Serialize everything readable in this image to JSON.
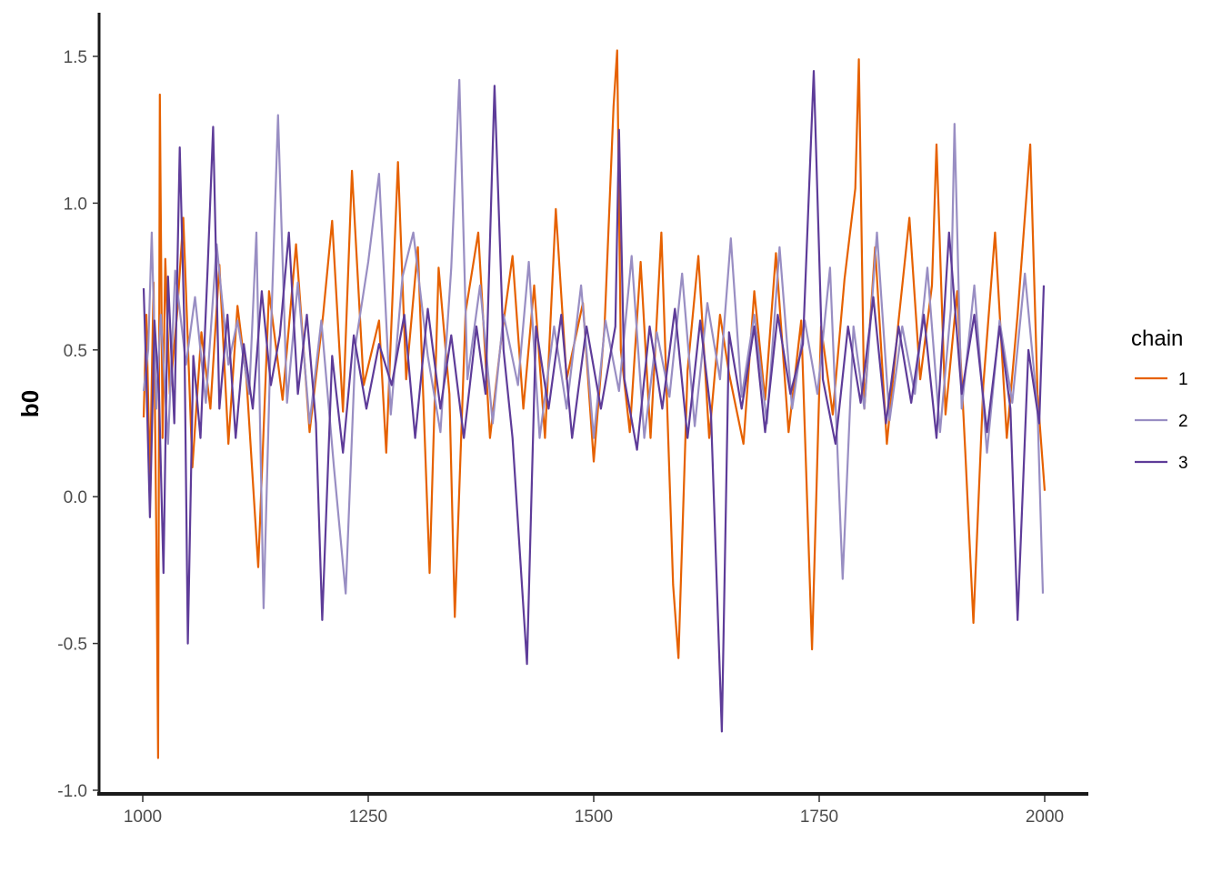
{
  "chart_data": {
    "type": "line",
    "title": "",
    "xlabel": "",
    "ylabel": "b0",
    "xlim": [
      1000,
      2000
    ],
    "ylim": [
      -1.0,
      1.5
    ],
    "x_ticks": [
      1000,
      1250,
      1500,
      1750,
      2000
    ],
    "y_ticks": [
      -1.0,
      -0.5,
      0.0,
      0.5,
      1.0,
      1.5
    ],
    "x_tick_labels": [
      "1000",
      "1250",
      "1500",
      "1750",
      "2000"
    ],
    "y_tick_labels": [
      "-1.0",
      "-0.5",
      "0.0",
      "0.5",
      "1.0",
      "1.5"
    ],
    "grid": false,
    "legend": {
      "title": "chain",
      "position": "right"
    },
    "series": [
      {
        "name": "1",
        "color": "#E66100",
        "points": [
          [
            1001,
            0.27
          ],
          [
            1004,
            0.62
          ],
          [
            1008,
            0.05
          ],
          [
            1012,
            0.73
          ],
          [
            1015,
            -0.12
          ],
          [
            1017,
            -0.89
          ],
          [
            1019,
            1.37
          ],
          [
            1022,
            0.2
          ],
          [
            1025,
            0.81
          ],
          [
            1030,
            0.35
          ],
          [
            1038,
            0.62
          ],
          [
            1045,
            0.95
          ],
          [
            1055,
            0.1
          ],
          [
            1065,
            0.56
          ],
          [
            1075,
            0.3
          ],
          [
            1085,
            0.79
          ],
          [
            1095,
            0.18
          ],
          [
            1105,
            0.65
          ],
          [
            1115,
            0.4
          ],
          [
            1128,
            -0.24
          ],
          [
            1140,
            0.7
          ],
          [
            1155,
            0.33
          ],
          [
            1170,
            0.86
          ],
          [
            1185,
            0.22
          ],
          [
            1200,
            0.62
          ],
          [
            1210,
            0.94
          ],
          [
            1222,
            0.29
          ],
          [
            1232,
            1.11
          ],
          [
            1245,
            0.38
          ],
          [
            1262,
            0.6
          ],
          [
            1270,
            0.15
          ],
          [
            1283,
            1.14
          ],
          [
            1292,
            0.4
          ],
          [
            1305,
            0.85
          ],
          [
            1318,
            -0.26
          ],
          [
            1328,
            0.78
          ],
          [
            1340,
            0.35
          ],
          [
            1346,
            -0.41
          ],
          [
            1358,
            0.63
          ],
          [
            1372,
            0.9
          ],
          [
            1385,
            0.2
          ],
          [
            1398,
            0.55
          ],
          [
            1410,
            0.82
          ],
          [
            1422,
            0.3
          ],
          [
            1434,
            0.72
          ],
          [
            1446,
            0.2
          ],
          [
            1458,
            0.98
          ],
          [
            1470,
            0.4
          ],
          [
            1488,
            0.66
          ],
          [
            1500,
            0.12
          ],
          [
            1512,
            0.58
          ],
          [
            1522,
            1.33
          ],
          [
            1526,
            1.52
          ],
          [
            1530,
            0.5
          ],
          [
            1540,
            0.22
          ],
          [
            1552,
            0.8
          ],
          [
            1563,
            0.2
          ],
          [
            1575,
            0.9
          ],
          [
            1588,
            -0.3
          ],
          [
            1594,
            -0.55
          ],
          [
            1604,
            0.43
          ],
          [
            1616,
            0.82
          ],
          [
            1628,
            0.2
          ],
          [
            1640,
            0.62
          ],
          [
            1650,
            0.42
          ],
          [
            1666,
            0.18
          ],
          [
            1678,
            0.7
          ],
          [
            1690,
            0.33
          ],
          [
            1702,
            0.83
          ],
          [
            1716,
            0.22
          ],
          [
            1730,
            0.6
          ],
          [
            1742,
            -0.52
          ],
          [
            1752,
            0.58
          ],
          [
            1765,
            0.28
          ],
          [
            1778,
            0.74
          ],
          [
            1790,
            1.05
          ],
          [
            1794,
            1.49
          ],
          [
            1800,
            0.3
          ],
          [
            1812,
            0.85
          ],
          [
            1825,
            0.18
          ],
          [
            1838,
            0.6
          ],
          [
            1850,
            0.95
          ],
          [
            1862,
            0.4
          ],
          [
            1875,
            0.72
          ],
          [
            1880,
            1.2
          ],
          [
            1890,
            0.28
          ],
          [
            1903,
            0.7
          ],
          [
            1912,
            0.15
          ],
          [
            1921,
            -0.43
          ],
          [
            1932,
            0.38
          ],
          [
            1945,
            0.9
          ],
          [
            1958,
            0.2
          ],
          [
            1970,
            0.62
          ],
          [
            1984,
            1.2
          ],
          [
            1992,
            0.35
          ],
          [
            2000,
            0.02
          ]
        ]
      },
      {
        "name": "2",
        "color": "#998EC3",
        "points": [
          [
            1001,
            0.36
          ],
          [
            1006,
            0.5
          ],
          [
            1010,
            0.9
          ],
          [
            1015,
            0.3
          ],
          [
            1020,
            0.62
          ],
          [
            1028,
            0.18
          ],
          [
            1036,
            0.77
          ],
          [
            1048,
            0.45
          ],
          [
            1058,
            0.68
          ],
          [
            1070,
            0.32
          ],
          [
            1082,
            0.86
          ],
          [
            1095,
            0.45
          ],
          [
            1105,
            0.6
          ],
          [
            1118,
            0.35
          ],
          [
            1126,
            0.9
          ],
          [
            1134,
            -0.38
          ],
          [
            1142,
            0.55
          ],
          [
            1150,
            1.3
          ],
          [
            1160,
            0.32
          ],
          [
            1172,
            0.73
          ],
          [
            1185,
            0.25
          ],
          [
            1198,
            0.6
          ],
          [
            1212,
            0.1
          ],
          [
            1225,
            -0.33
          ],
          [
            1236,
            0.52
          ],
          [
            1250,
            0.8
          ],
          [
            1262,
            1.1
          ],
          [
            1275,
            0.28
          ],
          [
            1288,
            0.75
          ],
          [
            1300,
            0.9
          ],
          [
            1316,
            0.48
          ],
          [
            1330,
            0.22
          ],
          [
            1342,
            0.78
          ],
          [
            1351,
            1.42
          ],
          [
            1360,
            0.4
          ],
          [
            1374,
            0.72
          ],
          [
            1388,
            0.25
          ],
          [
            1400,
            0.62
          ],
          [
            1416,
            0.38
          ],
          [
            1428,
            0.8
          ],
          [
            1440,
            0.2
          ],
          [
            1456,
            0.58
          ],
          [
            1470,
            0.3
          ],
          [
            1486,
            0.72
          ],
          [
            1500,
            0.2
          ],
          [
            1513,
            0.6
          ],
          [
            1528,
            0.36
          ],
          [
            1542,
            0.82
          ],
          [
            1556,
            0.2
          ],
          [
            1570,
            0.56
          ],
          [
            1584,
            0.34
          ],
          [
            1598,
            0.76
          ],
          [
            1612,
            0.24
          ],
          [
            1626,
            0.66
          ],
          [
            1640,
            0.4
          ],
          [
            1652,
            0.88
          ],
          [
            1664,
            0.34
          ],
          [
            1678,
            0.62
          ],
          [
            1692,
            0.25
          ],
          [
            1706,
            0.85
          ],
          [
            1720,
            0.3
          ],
          [
            1734,
            0.6
          ],
          [
            1748,
            0.35
          ],
          [
            1762,
            0.78
          ],
          [
            1776,
            -0.28
          ],
          [
            1788,
            0.58
          ],
          [
            1800,
            0.3
          ],
          [
            1814,
            0.9
          ],
          [
            1828,
            0.26
          ],
          [
            1842,
            0.58
          ],
          [
            1856,
            0.35
          ],
          [
            1870,
            0.78
          ],
          [
            1884,
            0.22
          ],
          [
            1896,
            0.64
          ],
          [
            1900,
            1.27
          ],
          [
            1908,
            0.3
          ],
          [
            1922,
            0.72
          ],
          [
            1936,
            0.15
          ],
          [
            1950,
            0.6
          ],
          [
            1964,
            0.32
          ],
          [
            1978,
            0.76
          ],
          [
            1992,
            0.3
          ],
          [
            1998,
            -0.33
          ]
        ]
      },
      {
        "name": "3",
        "color": "#5E3C99",
        "points": [
          [
            1001,
            0.71
          ],
          [
            1004,
            0.4
          ],
          [
            1008,
            -0.07
          ],
          [
            1013,
            0.6
          ],
          [
            1018,
            0.35
          ],
          [
            1023,
            -0.26
          ],
          [
            1028,
            0.75
          ],
          [
            1035,
            0.25
          ],
          [
            1041,
            1.19
          ],
          [
            1046,
            0.6
          ],
          [
            1050,
            -0.5
          ],
          [
            1056,
            0.48
          ],
          [
            1064,
            0.2
          ],
          [
            1072,
            0.78
          ],
          [
            1078,
            1.26
          ],
          [
            1085,
            0.3
          ],
          [
            1094,
            0.62
          ],
          [
            1103,
            0.2
          ],
          [
            1112,
            0.52
          ],
          [
            1122,
            0.3
          ],
          [
            1132,
            0.7
          ],
          [
            1142,
            0.38
          ],
          [
            1152,
            0.55
          ],
          [
            1162,
            0.9
          ],
          [
            1172,
            0.35
          ],
          [
            1182,
            0.62
          ],
          [
            1192,
            0.25
          ],
          [
            1199,
            -0.42
          ],
          [
            1210,
            0.48
          ],
          [
            1222,
            0.15
          ],
          [
            1234,
            0.55
          ],
          [
            1248,
            0.3
          ],
          [
            1262,
            0.52
          ],
          [
            1276,
            0.38
          ],
          [
            1290,
            0.62
          ],
          [
            1302,
            0.2
          ],
          [
            1316,
            0.64
          ],
          [
            1330,
            0.3
          ],
          [
            1342,
            0.55
          ],
          [
            1356,
            0.2
          ],
          [
            1370,
            0.58
          ],
          [
            1380,
            0.35
          ],
          [
            1390,
            1.4
          ],
          [
            1400,
            0.5
          ],
          [
            1410,
            0.2
          ],
          [
            1426,
            -0.57
          ],
          [
            1436,
            0.58
          ],
          [
            1450,
            0.3
          ],
          [
            1464,
            0.62
          ],
          [
            1476,
            0.2
          ],
          [
            1492,
            0.58
          ],
          [
            1508,
            0.3
          ],
          [
            1524,
            0.58
          ],
          [
            1528,
            1.25
          ],
          [
            1534,
            0.4
          ],
          [
            1548,
            0.16
          ],
          [
            1562,
            0.58
          ],
          [
            1576,
            0.3
          ],
          [
            1590,
            0.64
          ],
          [
            1604,
            0.2
          ],
          [
            1618,
            0.6
          ],
          [
            1630,
            0.28
          ],
          [
            1642,
            -0.8
          ],
          [
            1650,
            0.56
          ],
          [
            1664,
            0.3
          ],
          [
            1678,
            0.58
          ],
          [
            1690,
            0.22
          ],
          [
            1704,
            0.62
          ],
          [
            1718,
            0.35
          ],
          [
            1732,
            0.52
          ],
          [
            1744,
            1.45
          ],
          [
            1754,
            0.4
          ],
          [
            1768,
            0.18
          ],
          [
            1782,
            0.58
          ],
          [
            1796,
            0.32
          ],
          [
            1810,
            0.68
          ],
          [
            1824,
            0.25
          ],
          [
            1838,
            0.58
          ],
          [
            1852,
            0.32
          ],
          [
            1866,
            0.62
          ],
          [
            1880,
            0.2
          ],
          [
            1894,
            0.9
          ],
          [
            1908,
            0.35
          ],
          [
            1922,
            0.62
          ],
          [
            1936,
            0.22
          ],
          [
            1950,
            0.58
          ],
          [
            1962,
            0.3
          ],
          [
            1970,
            -0.42
          ],
          [
            1982,
            0.5
          ],
          [
            1994,
            0.25
          ],
          [
            1999,
            0.72
          ]
        ]
      }
    ]
  }
}
